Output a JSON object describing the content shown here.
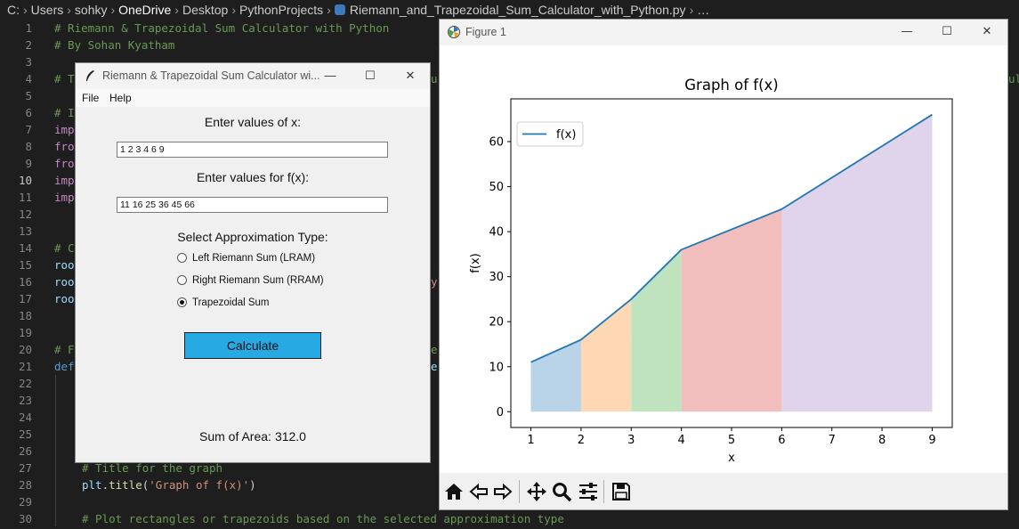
{
  "editor": {
    "breadcrumb": [
      "C:",
      "Users",
      "sohky",
      "OneDrive",
      "Desktop",
      "PythonProjects",
      "Riemann_and_Trapezoidal_Sum_Calculator_with_Python.py",
      "…"
    ],
    "line_numbers": [
      "1",
      "2",
      "3",
      "4",
      "5",
      "6",
      "7",
      "8",
      "9",
      "10",
      "11",
      "12",
      "13",
      "14",
      "15",
      "16",
      "17",
      "18",
      "19",
      "20",
      "21",
      "22",
      "23",
      "24",
      "25",
      "26",
      "27",
      "28",
      "29",
      "30"
    ],
    "active_line": "10",
    "code": {
      "l1": "# Riemann & Trapezoidal Sum Calculator with Python",
      "l2": "# By Sohan Kyatham",
      "l4a": "# T",
      "l4b": "u",
      "l4c": "ul",
      "l6": "# I",
      "l7": "imp",
      "l8": "fro",
      "l9": "fro",
      "l10": "imp",
      "l11": "imp",
      "l14": "# C",
      "l15": "roo",
      "l16a": "roo",
      "l16b": "y",
      "l17": "roo",
      "l20a": "# F",
      "l20b": "e",
      "l21a": "def",
      "l21b": "e",
      "l27": "# Title for the graph",
      "l28_obj": "plt",
      "l28_fn": "title",
      "l28_open": ".",
      "l28_paren": "(",
      "l28_str": "'Graph of f(x)'",
      "l28_close": ")",
      "l30": "# Plot rectangles or trapezoids based on the selected approximation type"
    }
  },
  "calculator": {
    "title": "Riemann & Trapezoidal Sum Calculator wi...",
    "menu": [
      "File",
      "Help"
    ],
    "x_label": "Enter values of x:",
    "x_value": "1 2 3 4 6 9",
    "fx_label": "Enter values for f(x):",
    "fx_value": "11 16 25 36 45 66",
    "approx_label": "Select Approximation Type:",
    "options": [
      {
        "label": "Left Riemann Sum (LRAM)",
        "selected": false
      },
      {
        "label": "Right Riemann Sum (RRAM)",
        "selected": false
      },
      {
        "label": "Trapezoidal Sum",
        "selected": true
      }
    ],
    "button_label": "Calculate",
    "button_color": "#27aae4",
    "result_label": "Sum of Area:",
    "result_value": "312.0"
  },
  "figure": {
    "window_title": "Figure 1",
    "toolbar": [
      "home-icon",
      "back-icon",
      "forward-icon",
      "pan-icon",
      "zoom-icon",
      "configure-icon",
      "save-icon"
    ]
  },
  "chart_data": {
    "type": "area",
    "title": "Graph of f(x)",
    "xlabel": "x",
    "ylabel": "f(x)",
    "x": [
      1,
      2,
      3,
      4,
      6,
      9
    ],
    "series": [
      {
        "name": "f(x)",
        "values": [
          11,
          16,
          25,
          36,
          45,
          66
        ],
        "color": "#1f77b4"
      }
    ],
    "segment_colors": [
      "#b9d3e8",
      "#fed8b4",
      "#bee3be",
      "#f2bdbd",
      "#e0d3ec"
    ],
    "xticks": [
      1,
      2,
      3,
      4,
      5,
      6,
      7,
      8,
      9
    ],
    "yticks": [
      0,
      10,
      20,
      30,
      40,
      50,
      60
    ],
    "xlim": [
      0.6,
      9.4
    ],
    "ylim": [
      -3.5,
      69.5
    ],
    "legend": "top-left",
    "grid": false
  }
}
